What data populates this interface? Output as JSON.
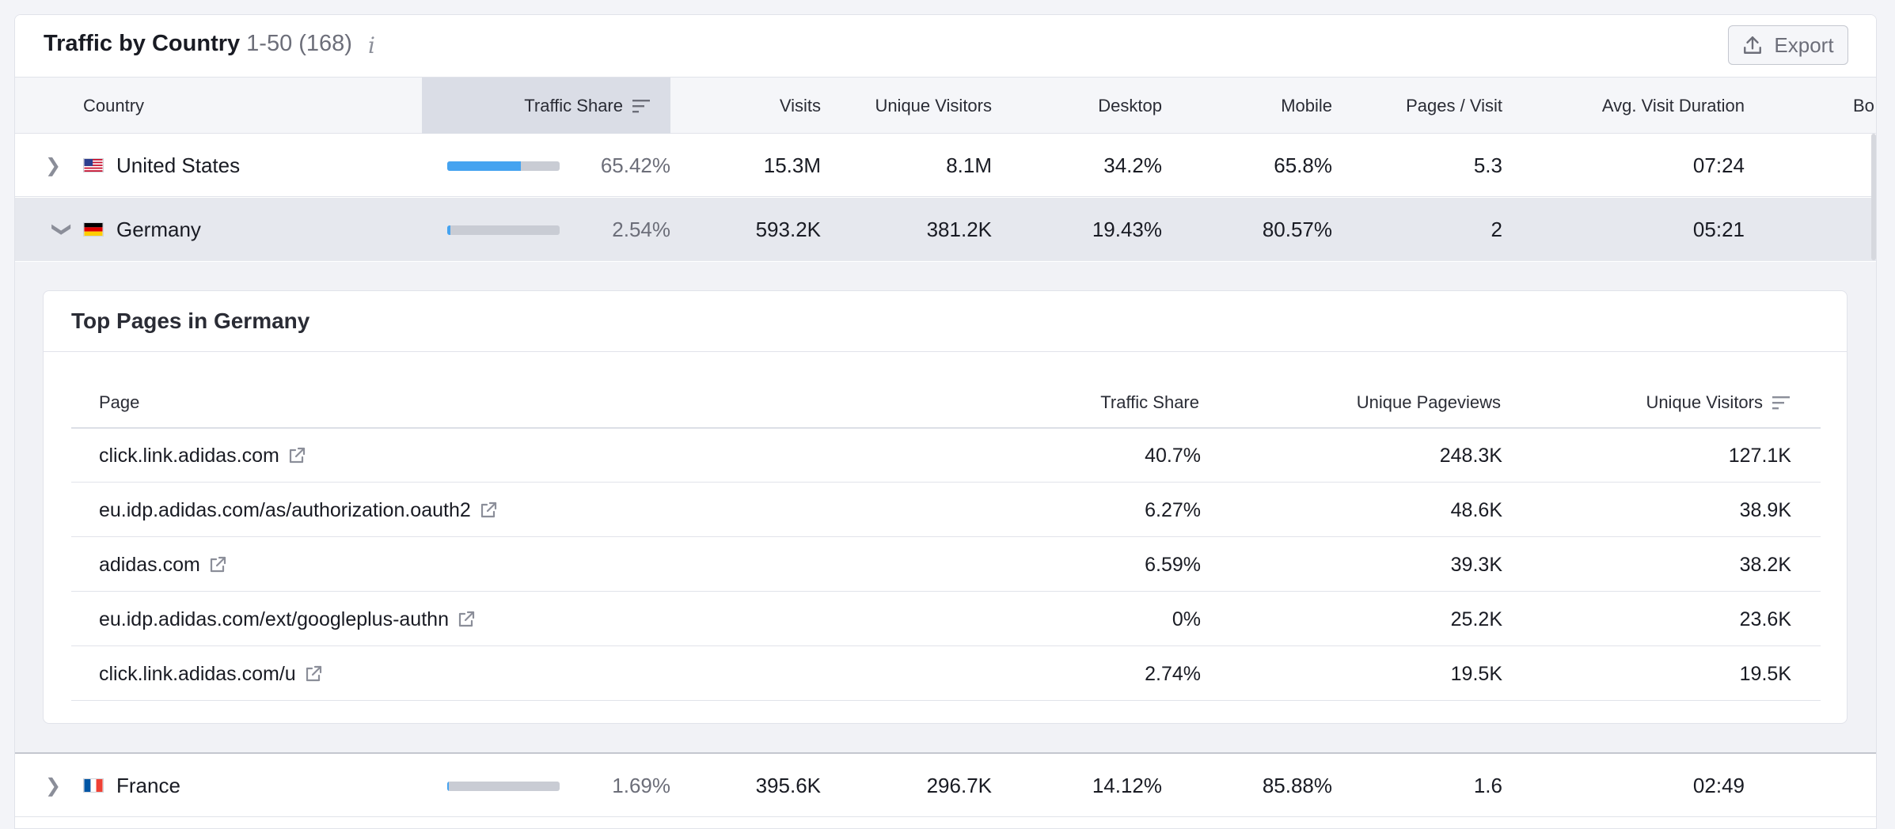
{
  "header": {
    "title": "Traffic by Country",
    "range": "1-50 (168)",
    "info_icon": "i",
    "export_label": "Export"
  },
  "columns": {
    "country": "Country",
    "traffic_share": "Traffic Share",
    "visits": "Visits",
    "unique_visitors": "Unique Visitors",
    "desktop": "Desktop",
    "mobile": "Mobile",
    "pages_visit": "Pages / Visit",
    "avg_duration": "Avg. Visit Duration",
    "bounce": "Bo"
  },
  "rows": [
    {
      "country": "United States",
      "flag": "us-flag",
      "share": "65.42%",
      "share_value": 0.6542,
      "visits": "15.3M",
      "unique": "8.1M",
      "desktop": "34.2%",
      "mobile": "65.8%",
      "pages": "5.3",
      "duration": "07:24"
    },
    {
      "country": "Germany",
      "flag": "de-flag",
      "share": "2.54%",
      "share_value": 0.0254,
      "visits": "593.2K",
      "unique": "381.2K",
      "desktop": "19.43%",
      "mobile": "80.57%",
      "pages": "2",
      "duration": "05:21"
    },
    {
      "country": "France",
      "flag": "fr-flag",
      "share": "1.69%",
      "share_value": 0.0169,
      "visits": "395.6K",
      "unique": "296.7K",
      "desktop": "14.12%",
      "mobile": "85.88%",
      "pages": "1.6",
      "duration": "02:49"
    }
  ],
  "top_pages": {
    "title": "Top Pages in Germany",
    "columns": {
      "page": "Page",
      "traffic_share": "Traffic Share",
      "unique_pageviews": "Unique Pageviews",
      "unique_visitors": "Unique Visitors"
    },
    "rows": [
      {
        "page": "click.link.adidas.com",
        "share": "40.7%",
        "pageviews": "248.3K",
        "visitors": "127.1K"
      },
      {
        "page": "eu.idp.adidas.com/as/authorization.oauth2",
        "share": "6.27%",
        "pageviews": "48.6K",
        "visitors": "38.9K"
      },
      {
        "page": "adidas.com",
        "share": "6.59%",
        "pageviews": "39.3K",
        "visitors": "38.2K"
      },
      {
        "page": "eu.idp.adidas.com/ext/googleplus-authn",
        "share": "0%",
        "pageviews": "25.2K",
        "visitors": "23.6K"
      },
      {
        "page": "click.link.adidas.com/u",
        "share": "2.74%",
        "pageviews": "19.5K",
        "visitors": "19.5K"
      }
    ]
  },
  "colors": {
    "bar_fill": "#45a3f0",
    "bar_track": "#c9ccd4",
    "sorted_header": "#dadde6"
  }
}
